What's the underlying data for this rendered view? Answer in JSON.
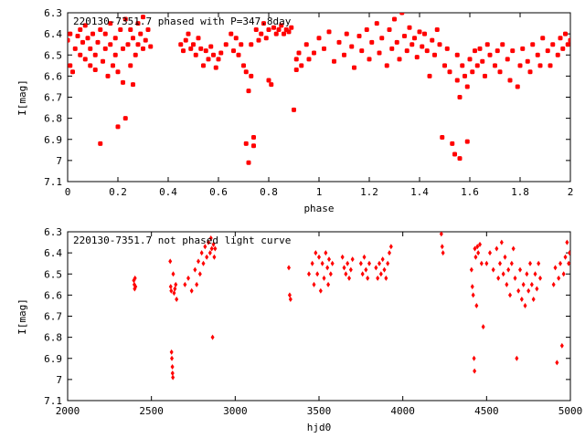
{
  "chart_data": [
    {
      "type": "scatter",
      "title": "220130-7351.7 phased with P=347.8day",
      "xlabel": "phase",
      "ylabel": "I[mag]",
      "xlim": [
        0,
        2
      ],
      "ylim": [
        6.3,
        7.1
      ],
      "y_inverted": true,
      "xticks": [
        "0",
        "0.2",
        "0.4",
        "0.6",
        "0.8",
        "1",
        "1.2",
        "1.4",
        "1.6",
        "1.8",
        "2"
      ],
      "yticks": [
        "6.3",
        "6.4",
        "6.5",
        "6.6",
        "6.7",
        "6.8",
        "6.9",
        "7",
        "7.1"
      ],
      "marker_color": "#ff0000",
      "points": [
        [
          0.0,
          6.43
        ],
        [
          0.01,
          6.55
        ],
        [
          0.01,
          6.4
        ],
        [
          0.02,
          6.58
        ],
        [
          0.03,
          6.47
        ],
        [
          0.04,
          6.41
        ],
        [
          0.05,
          6.5
        ],
        [
          0.05,
          6.38
        ],
        [
          0.06,
          6.44
        ],
        [
          0.07,
          6.52
        ],
        [
          0.07,
          6.36
        ],
        [
          0.08,
          6.42
        ],
        [
          0.09,
          6.55
        ],
        [
          0.09,
          6.47
        ],
        [
          0.1,
          6.4
        ],
        [
          0.11,
          6.5
        ],
        [
          0.11,
          6.57
        ],
        [
          0.12,
          6.44
        ],
        [
          0.13,
          6.38
        ],
        [
          0.13,
          6.92
        ],
        [
          0.14,
          6.53
        ],
        [
          0.15,
          6.47
        ],
        [
          0.15,
          6.4
        ],
        [
          0.16,
          6.6
        ],
        [
          0.17,
          6.35
        ],
        [
          0.17,
          6.45
        ],
        [
          0.18,
          6.55
        ],
        [
          0.19,
          6.42
        ],
        [
          0.19,
          6.5
        ],
        [
          0.2,
          6.58
        ],
        [
          0.2,
          6.84
        ],
        [
          0.21,
          6.38
        ],
        [
          0.22,
          6.47
        ],
        [
          0.22,
          6.63
        ],
        [
          0.23,
          6.33
        ],
        [
          0.23,
          6.8
        ],
        [
          0.24,
          6.45
        ],
        [
          0.25,
          6.55
        ],
        [
          0.25,
          6.38
        ],
        [
          0.26,
          6.42
        ],
        [
          0.26,
          6.64
        ],
        [
          0.27,
          6.5
        ],
        [
          0.28,
          6.35
        ],
        [
          0.28,
          6.45
        ],
        [
          0.29,
          6.4
        ],
        [
          0.3,
          6.47
        ],
        [
          0.3,
          6.32
        ],
        [
          0.31,
          6.43
        ],
        [
          0.32,
          6.38
        ],
        [
          0.33,
          6.46
        ],
        [
          0.45,
          6.45
        ],
        [
          0.46,
          6.48
        ],
        [
          0.47,
          6.43
        ],
        [
          0.48,
          6.4
        ],
        [
          0.49,
          6.47
        ],
        [
          0.5,
          6.45
        ],
        [
          0.51,
          6.5
        ],
        [
          0.52,
          6.42
        ],
        [
          0.53,
          6.47
        ],
        [
          0.54,
          6.55
        ],
        [
          0.55,
          6.48
        ],
        [
          0.56,
          6.52
        ],
        [
          0.57,
          6.46
        ],
        [
          0.58,
          6.5
        ],
        [
          0.59,
          6.56
        ],
        [
          0.6,
          6.52
        ],
        [
          0.61,
          6.49
        ],
        [
          0.63,
          6.45
        ],
        [
          0.65,
          6.4
        ],
        [
          0.66,
          6.48
        ],
        [
          0.67,
          6.42
        ],
        [
          0.68,
          6.5
        ],
        [
          0.69,
          6.45
        ],
        [
          0.7,
          6.55
        ],
        [
          0.71,
          6.92
        ],
        [
          0.71,
          6.58
        ],
        [
          0.72,
          7.01
        ],
        [
          0.72,
          6.67
        ],
        [
          0.73,
          6.6
        ],
        [
          0.73,
          6.45
        ],
        [
          0.74,
          6.89
        ],
        [
          0.74,
          6.93
        ],
        [
          0.75,
          6.38
        ],
        [
          0.76,
          6.43
        ],
        [
          0.77,
          6.4
        ],
        [
          0.78,
          6.35
        ],
        [
          0.79,
          6.42
        ],
        [
          0.8,
          6.38
        ],
        [
          0.8,
          6.62
        ],
        [
          0.81,
          6.64
        ],
        [
          0.82,
          6.37
        ],
        [
          0.83,
          6.4
        ],
        [
          0.84,
          6.38
        ],
        [
          0.85,
          6.36
        ],
        [
          0.86,
          6.4
        ],
        [
          0.87,
          6.38
        ],
        [
          0.88,
          6.39
        ],
        [
          0.89,
          6.37
        ],
        [
          0.9,
          6.76
        ],
        [
          0.91,
          6.52
        ],
        [
          0.91,
          6.57
        ],
        [
          0.92,
          6.49
        ],
        [
          0.93,
          6.55
        ],
        [
          0.95,
          6.45
        ],
        [
          0.96,
          6.52
        ],
        [
          0.98,
          6.49
        ],
        [
          1.0,
          6.42
        ],
        [
          1.02,
          6.47
        ],
        [
          1.04,
          6.39
        ],
        [
          1.06,
          6.53
        ],
        [
          1.08,
          6.44
        ],
        [
          1.1,
          6.5
        ],
        [
          1.11,
          6.4
        ],
        [
          1.13,
          6.46
        ],
        [
          1.14,
          6.56
        ],
        [
          1.16,
          6.41
        ],
        [
          1.17,
          6.48
        ],
        [
          1.19,
          6.38
        ],
        [
          1.2,
          6.52
        ],
        [
          1.21,
          6.44
        ],
        [
          1.23,
          6.35
        ],
        [
          1.24,
          6.49
        ],
        [
          1.25,
          6.42
        ],
        [
          1.27,
          6.55
        ],
        [
          1.28,
          6.38
        ],
        [
          1.29,
          6.47
        ],
        [
          1.3,
          6.33
        ],
        [
          1.31,
          6.44
        ],
        [
          1.32,
          6.52
        ],
        [
          1.33,
          6.3
        ],
        [
          1.34,
          6.41
        ],
        [
          1.35,
          6.48
        ],
        [
          1.36,
          6.37
        ],
        [
          1.37,
          6.45
        ],
        [
          1.38,
          6.42
        ],
        [
          1.39,
          6.51
        ],
        [
          1.4,
          6.39
        ],
        [
          1.41,
          6.46
        ],
        [
          1.42,
          6.4
        ],
        [
          1.43,
          6.48
        ],
        [
          1.44,
          6.6
        ],
        [
          1.45,
          6.43
        ],
        [
          1.46,
          6.5
        ],
        [
          1.47,
          6.38
        ],
        [
          1.48,
          6.45
        ],
        [
          1.49,
          6.89
        ],
        [
          1.5,
          6.55
        ],
        [
          1.51,
          6.47
        ],
        [
          1.52,
          6.58
        ],
        [
          1.53,
          6.92
        ],
        [
          1.54,
          6.97
        ],
        [
          1.55,
          6.5
        ],
        [
          1.55,
          6.62
        ],
        [
          1.56,
          6.99
        ],
        [
          1.56,
          6.7
        ],
        [
          1.57,
          6.55
        ],
        [
          1.58,
          6.6
        ],
        [
          1.59,
          6.91
        ],
        [
          1.59,
          6.65
        ],
        [
          1.6,
          6.52
        ],
        [
          1.61,
          6.58
        ],
        [
          1.62,
          6.48
        ],
        [
          1.63,
          6.55
        ],
        [
          1.64,
          6.47
        ],
        [
          1.65,
          6.53
        ],
        [
          1.66,
          6.6
        ],
        [
          1.67,
          6.45
        ],
        [
          1.68,
          6.5
        ],
        [
          1.7,
          6.55
        ],
        [
          1.71,
          6.48
        ],
        [
          1.72,
          6.58
        ],
        [
          1.73,
          6.45
        ],
        [
          1.75,
          6.52
        ],
        [
          1.76,
          6.62
        ],
        [
          1.77,
          6.48
        ],
        [
          1.79,
          6.65
        ],
        [
          1.8,
          6.55
        ],
        [
          1.81,
          6.47
        ],
        [
          1.83,
          6.53
        ],
        [
          1.84,
          6.58
        ],
        [
          1.85,
          6.45
        ],
        [
          1.87,
          6.5
        ],
        [
          1.88,
          6.55
        ],
        [
          1.89,
          6.42
        ],
        [
          1.91,
          6.48
        ],
        [
          1.92,
          6.55
        ],
        [
          1.93,
          6.45
        ],
        [
          1.95,
          6.5
        ],
        [
          1.96,
          6.42
        ],
        [
          1.97,
          6.47
        ],
        [
          1.98,
          6.4
        ],
        [
          1.99,
          6.45
        ],
        [
          2.0,
          6.43
        ]
      ]
    },
    {
      "type": "scatter",
      "title": "220130-7351.7 not phased light curve",
      "xlabel": "hjd0",
      "ylabel": "I[mag]",
      "xlim": [
        2000,
        5000
      ],
      "ylim": [
        6.3,
        7.1
      ],
      "y_inverted": true,
      "xticks": [
        "2000",
        "2500",
        "3000",
        "3500",
        "4000",
        "4500",
        "5000"
      ],
      "yticks": [
        "6.3",
        "6.4",
        "6.5",
        "6.6",
        "6.7",
        "6.8",
        "6.9",
        "7",
        "7.1"
      ],
      "marker_color": "#ff0000",
      "points": [
        [
          2395,
          6.53
        ],
        [
          2398,
          6.55
        ],
        [
          2400,
          6.57
        ],
        [
          2402,
          6.52
        ],
        [
          2405,
          6.56
        ],
        [
          2612,
          6.44
        ],
        [
          2615,
          6.56
        ],
        [
          2618,
          6.58
        ],
        [
          2620,
          6.87
        ],
        [
          2622,
          6.9
        ],
        [
          2625,
          6.94
        ],
        [
          2626,
          6.97
        ],
        [
          2628,
          6.99
        ],
        [
          2630,
          6.5
        ],
        [
          2635,
          6.59
        ],
        [
          2640,
          6.57
        ],
        [
          2645,
          6.55
        ],
        [
          2650,
          6.62
        ],
        [
          2700,
          6.55
        ],
        [
          2720,
          6.52
        ],
        [
          2740,
          6.58
        ],
        [
          2760,
          6.48
        ],
        [
          2770,
          6.55
        ],
        [
          2780,
          6.44
        ],
        [
          2790,
          6.5
        ],
        [
          2800,
          6.4
        ],
        [
          2810,
          6.45
        ],
        [
          2820,
          6.37
        ],
        [
          2830,
          6.42
        ],
        [
          2840,
          6.35
        ],
        [
          2850,
          6.4
        ],
        [
          2855,
          6.33
        ],
        [
          2860,
          6.38
        ],
        [
          2865,
          6.8
        ],
        [
          2870,
          6.36
        ],
        [
          2875,
          6.42
        ],
        [
          2880,
          6.38
        ],
        [
          3320,
          6.47
        ],
        [
          3325,
          6.6
        ],
        [
          3330,
          6.62
        ],
        [
          3440,
          6.5
        ],
        [
          3460,
          6.45
        ],
        [
          3470,
          6.55
        ],
        [
          3480,
          6.4
        ],
        [
          3490,
          6.5
        ],
        [
          3500,
          6.42
        ],
        [
          3510,
          6.58
        ],
        [
          3520,
          6.45
        ],
        [
          3530,
          6.52
        ],
        [
          3540,
          6.4
        ],
        [
          3550,
          6.47
        ],
        [
          3555,
          6.55
        ],
        [
          3560,
          6.43
        ],
        [
          3570,
          6.5
        ],
        [
          3580,
          6.45
        ],
        [
          3640,
          6.42
        ],
        [
          3650,
          6.47
        ],
        [
          3660,
          6.5
        ],
        [
          3670,
          6.45
        ],
        [
          3680,
          6.52
        ],
        [
          3690,
          6.48
        ],
        [
          3700,
          6.43
        ],
        [
          3750,
          6.45
        ],
        [
          3760,
          6.5
        ],
        [
          3770,
          6.42
        ],
        [
          3780,
          6.48
        ],
        [
          3790,
          6.52
        ],
        [
          3800,
          6.45
        ],
        [
          3840,
          6.47
        ],
        [
          3850,
          6.52
        ],
        [
          3860,
          6.45
        ],
        [
          3870,
          6.5
        ],
        [
          3880,
          6.43
        ],
        [
          3890,
          6.48
        ],
        [
          3900,
          6.52
        ],
        [
          3910,
          6.45
        ],
        [
          3920,
          6.4
        ],
        [
          3930,
          6.37
        ],
        [
          4230,
          6.31
        ],
        [
          4235,
          6.37
        ],
        [
          4240,
          6.4
        ],
        [
          4410,
          6.48
        ],
        [
          4415,
          6.56
        ],
        [
          4420,
          6.6
        ],
        [
          4425,
          6.9
        ],
        [
          4428,
          6.96
        ],
        [
          4430,
          6.38
        ],
        [
          4435,
          6.42
        ],
        [
          4440,
          6.65
        ],
        [
          4445,
          6.37
        ],
        [
          4450,
          6.4
        ],
        [
          4460,
          6.36
        ],
        [
          4470,
          6.45
        ],
        [
          4480,
          6.75
        ],
        [
          4500,
          6.45
        ],
        [
          4520,
          6.4
        ],
        [
          4540,
          6.48
        ],
        [
          4560,
          6.38
        ],
        [
          4570,
          6.52
        ],
        [
          4580,
          6.45
        ],
        [
          4590,
          6.35
        ],
        [
          4600,
          6.5
        ],
        [
          4610,
          6.42
        ],
        [
          4620,
          6.55
        ],
        [
          4630,
          6.48
        ],
        [
          4640,
          6.6
        ],
        [
          4650,
          6.45
        ],
        [
          4660,
          6.38
        ],
        [
          4670,
          6.52
        ],
        [
          4680,
          6.9
        ],
        [
          4690,
          6.58
        ],
        [
          4700,
          6.48
        ],
        [
          4710,
          6.62
        ],
        [
          4720,
          6.55
        ],
        [
          4730,
          6.65
        ],
        [
          4740,
          6.5
        ],
        [
          4750,
          6.58
        ],
        [
          4760,
          6.45
        ],
        [
          4770,
          6.55
        ],
        [
          4780,
          6.62
        ],
        [
          4790,
          6.5
        ],
        [
          4800,
          6.57
        ],
        [
          4810,
          6.45
        ],
        [
          4820,
          6.52
        ],
        [
          4900,
          6.55
        ],
        [
          4910,
          6.47
        ],
        [
          4920,
          6.92
        ],
        [
          4930,
          6.52
        ],
        [
          4940,
          6.45
        ],
        [
          4950,
          6.84
        ],
        [
          4960,
          6.5
        ],
        [
          4970,
          6.42
        ],
        [
          4980,
          6.35
        ],
        [
          4990,
          6.45
        ],
        [
          4995,
          6.4
        ]
      ]
    }
  ]
}
